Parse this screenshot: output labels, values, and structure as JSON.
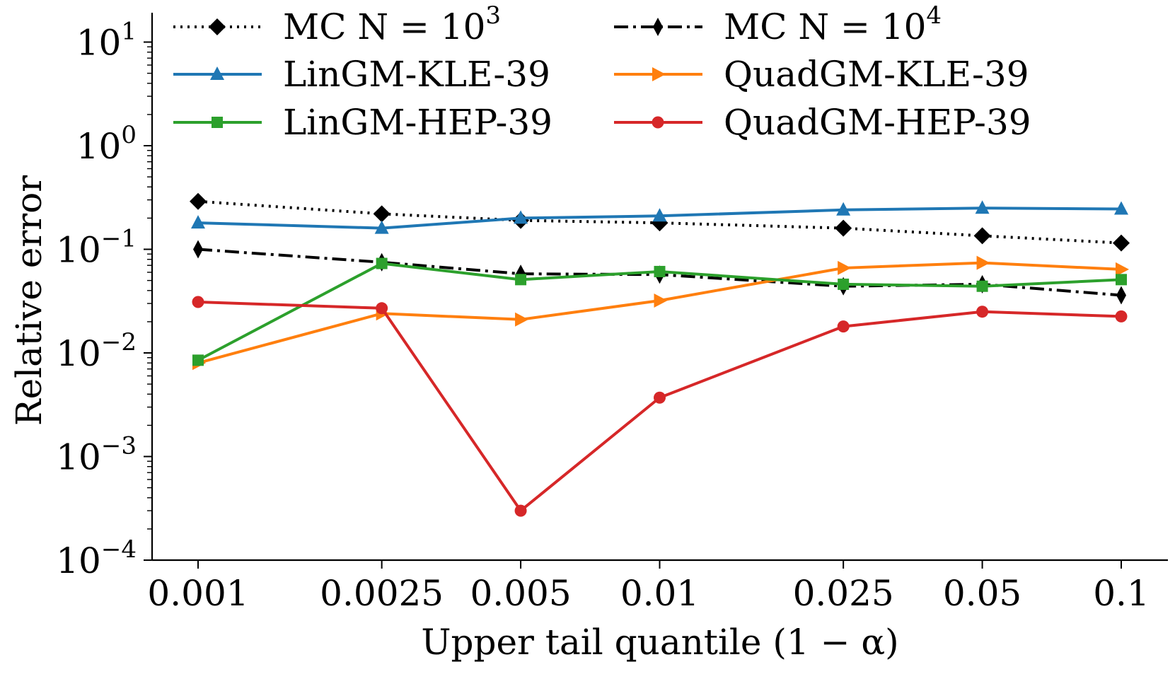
{
  "chart_data": {
    "type": "line",
    "title": "",
    "xlabel": "Upper tail quantile (1 − α)",
    "ylabel": "Relative error",
    "xscale": "categorical",
    "yscale": "log",
    "ylim": [
      0.0001,
      20
    ],
    "grid": false,
    "legend_position": "top",
    "categories": [
      "0.001",
      "0.0025",
      "0.005",
      "0.01",
      "0.025",
      "0.05",
      "0.1"
    ],
    "yticks": [
      {
        "value": 0.0001,
        "base": "10",
        "exp": "−4"
      },
      {
        "value": 0.001,
        "base": "10",
        "exp": "−3"
      },
      {
        "value": 0.01,
        "base": "10",
        "exp": "−2"
      },
      {
        "value": 0.1,
        "base": "10",
        "exp": "−1"
      },
      {
        "value": 1,
        "base": "10",
        "exp": "0"
      },
      {
        "value": 10,
        "base": "10",
        "exp": "1"
      }
    ],
    "series": [
      {
        "name": "MC N = 10^3",
        "label_main": "MC N = 10",
        "label_sup": "3",
        "color": "#000000",
        "linestyle": "dotted",
        "marker": "diamond",
        "values": [
          0.29,
          0.22,
          0.19,
          0.18,
          0.16,
          0.135,
          0.115
        ]
      },
      {
        "name": "MC N = 10^4",
        "label_main": "MC N = 10",
        "label_sup": "4",
        "color": "#000000",
        "linestyle": "dashdot",
        "marker": "thin-diamond",
        "values": [
          0.1,
          0.075,
          0.058,
          0.057,
          0.044,
          0.046,
          0.036
        ]
      },
      {
        "name": "LinGM-KLE-39",
        "label_main": "LinGM-KLE-39",
        "label_sup": "",
        "color": "#1f77b4",
        "linestyle": "solid",
        "marker": "triangle-up",
        "values": [
          0.18,
          0.16,
          0.2,
          0.21,
          0.24,
          0.25,
          0.245
        ]
      },
      {
        "name": "QuadGM-KLE-39",
        "label_main": "QuadGM-KLE-39",
        "label_sup": "",
        "color": "#ff7f0e",
        "linestyle": "solid",
        "marker": "triangle-right",
        "values": [
          0.008,
          0.024,
          0.021,
          0.032,
          0.066,
          0.074,
          0.064
        ]
      },
      {
        "name": "LinGM-HEP-39",
        "label_main": "LinGM-HEP-39",
        "label_sup": "",
        "color": "#2ca02c",
        "linestyle": "solid",
        "marker": "square",
        "values": [
          0.0085,
          0.073,
          0.051,
          0.061,
          0.046,
          0.044,
          0.051
        ]
      },
      {
        "name": "QuadGM-HEP-39",
        "label_main": "QuadGM-HEP-39",
        "label_sup": "",
        "color": "#d62728",
        "linestyle": "solid",
        "marker": "circle",
        "values": [
          0.031,
          0.027,
          0.0003,
          0.0037,
          0.018,
          0.025,
          0.0225
        ]
      }
    ]
  }
}
